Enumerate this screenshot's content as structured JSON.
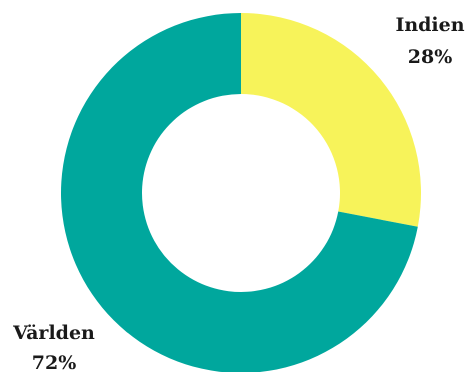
{
  "chart_data": {
    "type": "pie",
    "donut": true,
    "slices": [
      {
        "label": "Indien",
        "value": 28,
        "value_label": "28%",
        "color": "#f7f35a"
      },
      {
        "label": "Världen",
        "value": 72,
        "value_label": "72%",
        "color": "#00a79d"
      }
    ]
  }
}
